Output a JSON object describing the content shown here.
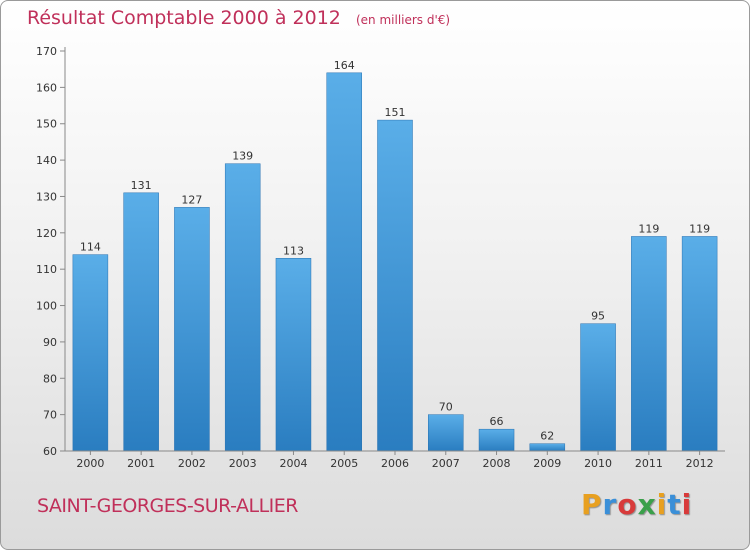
{
  "header": {
    "title": "Résultat Comptable 2000 à 2012",
    "subtitle": "(en milliers d'€)"
  },
  "footer": {
    "commune": "SAINT-GEORGES-SUR-ALLIER",
    "logo": "Proxiti"
  },
  "colors": {
    "title": "#c0305a",
    "bar_light": "#5aaee8",
    "bar_dark": "#2a7dc0",
    "logo_letters": [
      "#e8a020",
      "#3a8fd8",
      "#d83a3a",
      "#3aa04a",
      "#e8a020",
      "#3a8fd8",
      "#d83a3a"
    ]
  },
  "chart_data": {
    "type": "bar",
    "title": "Résultat Comptable 2000 à 2012",
    "subtitle": "(en milliers d'€)",
    "categories": [
      "2000",
      "2001",
      "2002",
      "2003",
      "2004",
      "2005",
      "2006",
      "2007",
      "2008",
      "2009",
      "2010",
      "2011",
      "2012"
    ],
    "values": [
      114,
      131,
      127,
      139,
      113,
      164,
      151,
      70,
      66,
      62,
      95,
      119,
      119
    ],
    "ylim": [
      60,
      170
    ],
    "yticks": [
      60,
      70,
      80,
      90,
      100,
      110,
      120,
      130,
      140,
      150,
      160,
      170
    ],
    "xlabel": "",
    "ylabel": "",
    "grid": false,
    "data_labels": true
  }
}
